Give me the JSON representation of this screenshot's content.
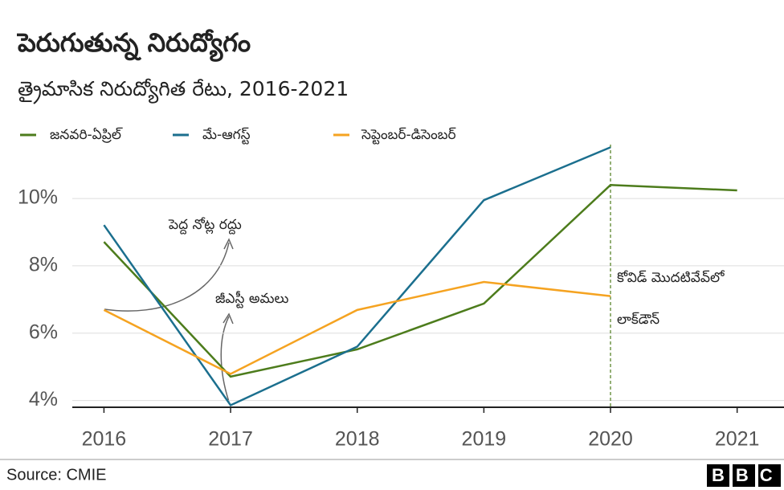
{
  "chart_data": {
    "type": "line",
    "title": "పెరుగుతున్న నిరుద్యోగం",
    "subtitle": "త్రైమాసిక నిరుద్యోగిత రేటు, 2016-2021",
    "x": [
      2016,
      2017,
      2018,
      2019,
      2020,
      2021
    ],
    "series": [
      {
        "name": "జనవరి-ఏప్రిల్",
        "color": "#4d7c1c",
        "values": [
          8.71,
          4.71,
          5.52,
          6.88,
          10.4,
          10.24
        ]
      },
      {
        "name": "మే-ఆగస్ట్",
        "color": "#1b6f8e",
        "values": [
          9.21,
          3.86,
          5.6,
          9.95,
          11.52,
          null
        ]
      },
      {
        "name": "సెప్టెంబర్-డిసెంబర్",
        "color": "#f5a321",
        "values": [
          6.69,
          4.79,
          6.69,
          7.52,
          7.1,
          null
        ]
      }
    ],
    "xlim": [
      2015.75,
      2021.37
    ],
    "ylim": [
      3.8,
      11.6
    ],
    "xticks": [
      2016,
      2017,
      2018,
      2019,
      2020,
      2021
    ],
    "yticks": [
      {
        "value": 4,
        "label": "4%"
      },
      {
        "value": 6,
        "label": "6%"
      },
      {
        "value": 8,
        "label": "8%"
      },
      {
        "value": 10,
        "label": "10%"
      }
    ],
    "grid": true,
    "annotations": [
      {
        "text": "పెద్ద నోట్ల రద్దు"
      },
      {
        "text": "జీఎస్టీ అమలు"
      },
      {
        "text": "కోవిడ్ మొదటివేవ్‌లో"
      },
      {
        "text": "లాక్‌డౌన్"
      }
    ],
    "marker_line_x": 2020,
    "source": "Source: CMIE",
    "logo": "BBC"
  }
}
